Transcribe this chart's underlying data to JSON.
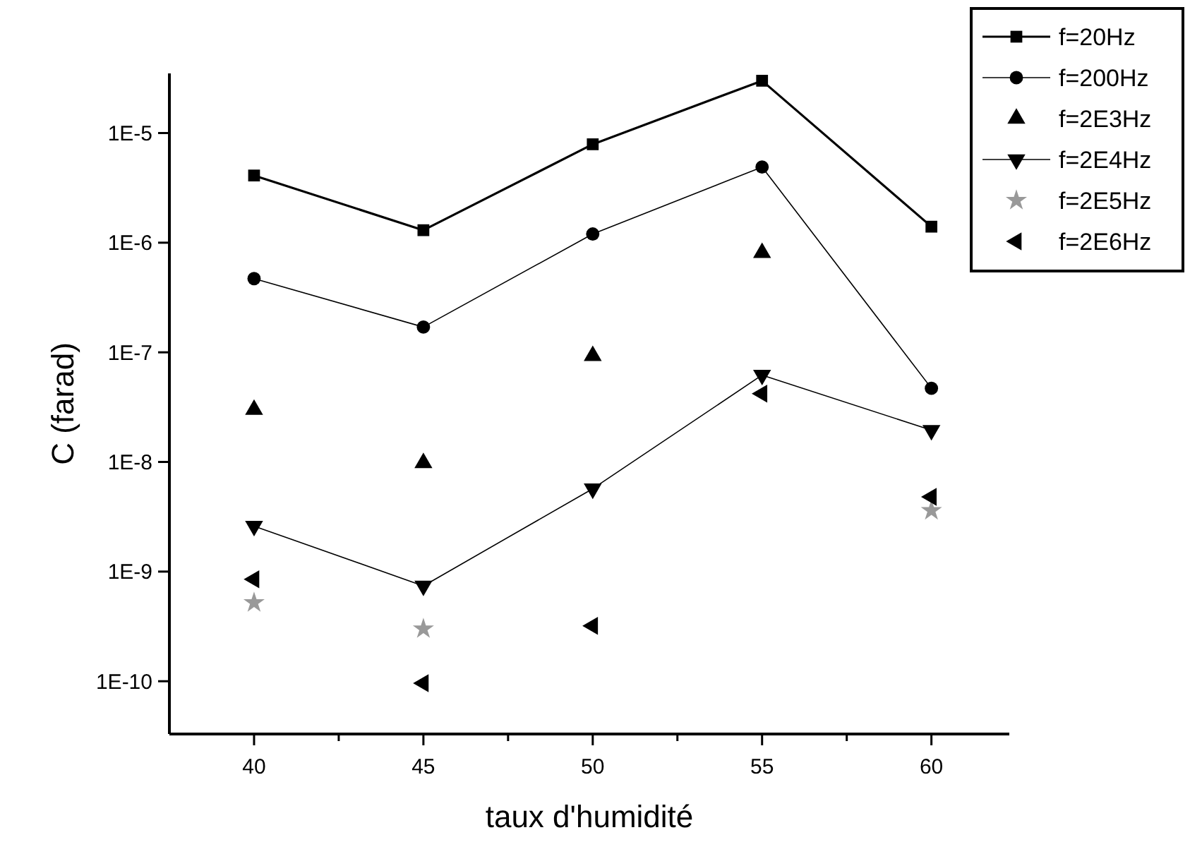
{
  "chart_data": {
    "type": "line",
    "xlabel": "taux d'humidité",
    "ylabel": "C (farad)",
    "log": "y",
    "x": [
      40,
      45,
      50,
      55,
      60
    ],
    "xlim": [
      37.5,
      62.3
    ],
    "xticks": [
      40,
      {
        "value": 42.5,
        "label": null
      },
      45,
      {
        "value": 47.5,
        "label": null
      },
      50,
      {
        "value": 52.5,
        "label": null
      },
      55,
      {
        "value": 57.5,
        "label": null
      },
      60
    ],
    "ylim": [
      3.3e-11,
      3.5e-05
    ],
    "yticks": [
      {
        "value": 1e-10,
        "label": "1E-10"
      },
      {
        "value": 1e-09,
        "label": "1E-9"
      },
      {
        "value": 1e-08,
        "label": "1E-8"
      },
      {
        "value": 1e-07,
        "label": "1E-7"
      },
      {
        "value": 1e-06,
        "label": "1E-6"
      },
      {
        "value": 1e-05,
        "label": "1E-5"
      }
    ],
    "grid": false,
    "legend": "top right",
    "series": [
      {
        "name": "f=20Hz",
        "marker": "square",
        "color": "#000000",
        "values": [
          4.1e-06,
          1.3e-06,
          7.9e-06,
          3e-05,
          1.4e-06
        ]
      },
      {
        "name": "f=200Hz",
        "marker": "circle",
        "color": "#000000",
        "values": [
          4.7e-07,
          1.7e-07,
          1.2e-06,
          4.9e-06,
          4.7e-08
        ]
      },
      {
        "name": "f=2E3Hz",
        "type": "scatter",
        "marker": "triangle",
        "color": "#000000",
        "values": [
          3e-08,
          9.8e-09,
          9.3e-08,
          8.1e-07,
          null
        ]
      },
      {
        "name": "f=2E4Hz",
        "marker": "triangle-down",
        "color": "#000000",
        "values": [
          2.6e-09,
          7.4e-10,
          5.7e-09,
          6.2e-08,
          1.95e-08
        ]
      },
      {
        "name": "f=2E5Hz",
        "type": "scatter",
        "marker": "star",
        "color": "#999999",
        "values": [
          5.2e-10,
          3e-10,
          null,
          null,
          3.6e-09
        ]
      },
      {
        "name": "f=2E6Hz",
        "type": "scatter",
        "marker": "triangle-left",
        "color": "#000000",
        "values": [
          8.5e-10,
          9.6e-11,
          3.2e-10,
          4.2e-08,
          4.8e-09
        ]
      }
    ]
  }
}
